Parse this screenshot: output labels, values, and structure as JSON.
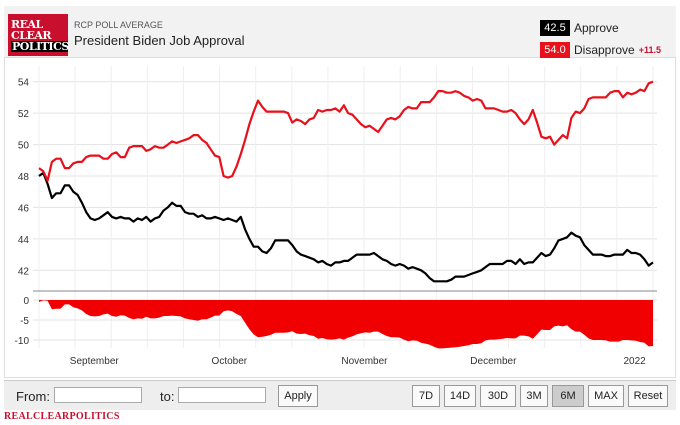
{
  "header": {
    "logo_lines": [
      "REAL",
      "CLEAR",
      "POLITICS"
    ],
    "subtitle": "RCP POLL AVERAGE",
    "title": "President Biden Job Approval"
  },
  "legend": {
    "approve": {
      "value": "42.5",
      "label": "Approve",
      "color": "#000000"
    },
    "disapprove": {
      "value": "54.0",
      "label": "Disapprove",
      "color": "#e8101a",
      "spread": "+11.5"
    }
  },
  "controls": {
    "from_label": "From:",
    "to_label": "to:",
    "apply_label": "Apply",
    "ranges": [
      "7D",
      "14D",
      "30D",
      "3M",
      "6M",
      "MAX",
      "Reset"
    ],
    "active_range": "6M"
  },
  "footer": "REALCLEARPOLITICS",
  "chart_data": {
    "type": "line",
    "x_ticks": [
      "September",
      "October",
      "November",
      "December",
      "2022"
    ],
    "y_ticks": [
      42,
      44,
      46,
      48,
      50,
      52,
      54
    ],
    "ylim": [
      41,
      55
    ],
    "spread_ticks": [
      0,
      -5,
      -10
    ],
    "spread_ylim": [
      -12,
      1
    ],
    "grid": true,
    "series": [
      {
        "name": "Approve",
        "color": "#000000",
        "values": [
          48.0,
          48.2,
          47.5,
          46.6,
          46.9,
          46.9,
          47.4,
          47.4,
          47.0,
          46.8,
          46.3,
          45.7,
          45.3,
          45.2,
          45.3,
          45.5,
          45.7,
          45.4,
          45.3,
          45.4,
          45.3,
          45.3,
          45.1,
          45.3,
          45.2,
          45.4,
          45.1,
          45.3,
          45.4,
          45.8,
          46.0,
          46.3,
          46.1,
          46.1,
          45.7,
          45.6,
          45.6,
          45.4,
          45.5,
          45.3,
          45.3,
          45.4,
          45.3,
          45.2,
          45.3,
          45.2,
          45.1,
          45.4,
          44.6,
          44.0,
          43.5,
          43.5,
          43.2,
          43.1,
          43.4,
          43.9,
          43.9,
          43.9,
          43.9,
          43.6,
          43.2,
          43.0,
          42.9,
          42.8,
          42.7,
          42.5,
          42.6,
          42.4,
          42.3,
          42.5,
          42.5,
          42.6,
          42.6,
          42.8,
          43.0,
          43.0,
          43.0,
          43.0,
          43.1,
          42.9,
          42.7,
          42.6,
          42.4,
          42.3,
          42.4,
          42.3,
          42.1,
          42.2,
          42.1,
          42.0,
          41.8,
          41.5,
          41.3,
          41.3,
          41.3,
          41.3,
          41.4,
          41.6,
          41.6,
          41.6,
          41.7,
          41.8,
          41.9,
          42.0,
          42.2,
          42.4,
          42.4,
          42.4,
          42.4,
          42.6,
          42.6,
          42.4,
          42.7,
          42.4,
          42.5,
          42.5,
          42.8,
          43.1,
          42.9,
          43.0,
          43.4,
          43.9,
          44.0,
          44.1,
          44.4,
          44.2,
          44.1,
          43.6,
          43.3,
          43.0,
          43.0,
          43.0,
          42.9,
          42.9,
          43.0,
          43.0,
          43.0,
          43.3,
          43.1,
          43.1,
          43.0,
          42.7,
          42.3,
          42.5
        ]
      },
      {
        "name": "Disapprove",
        "color": "#e8101a",
        "values": [
          48.5,
          48.3,
          47.7,
          48.9,
          49.1,
          49.1,
          48.5,
          48.5,
          48.8,
          48.9,
          48.9,
          49.2,
          49.3,
          49.3,
          49.3,
          49.1,
          49.1,
          49.4,
          49.5,
          49.2,
          49.2,
          49.8,
          49.9,
          49.9,
          49.9,
          49.6,
          49.7,
          49.9,
          49.8,
          49.8,
          50.0,
          50.2,
          50.1,
          50.2,
          50.3,
          50.4,
          50.6,
          50.6,
          50.3,
          50.1,
          49.7,
          49.3,
          49.2,
          48.0,
          47.9,
          48.0,
          48.6,
          49.4,
          50.3,
          51.3,
          52.1,
          52.8,
          52.4,
          52.1,
          52.1,
          52.1,
          52.1,
          52.1,
          52.0,
          51.4,
          51.6,
          51.5,
          51.3,
          51.6,
          51.7,
          52.2,
          52.1,
          52.2,
          52.2,
          52.3,
          52.1,
          52.5,
          52.0,
          51.9,
          51.6,
          51.3,
          51.1,
          51.2,
          51.0,
          50.8,
          51.2,
          51.6,
          51.7,
          51.6,
          51.8,
          52.2,
          52.4,
          52.3,
          52.3,
          52.7,
          52.7,
          52.7,
          53.0,
          53.4,
          53.4,
          53.3,
          53.3,
          53.4,
          53.3,
          53.1,
          53.0,
          52.8,
          52.9,
          52.8,
          52.3,
          52.3,
          52.3,
          52.2,
          52.1,
          52.1,
          52.2,
          52.0,
          51.6,
          51.3,
          51.6,
          52.2,
          51.4,
          50.5,
          50.4,
          50.5,
          50.0,
          50.3,
          50.6,
          50.4,
          51.7,
          52.1,
          52.0,
          52.3,
          52.9,
          53.0,
          53.0,
          53.0,
          53.0,
          53.3,
          53.4,
          53.4,
          53.0,
          53.3,
          53.2,
          53.3,
          53.5,
          53.4,
          53.9,
          54.0
        ]
      }
    ]
  }
}
